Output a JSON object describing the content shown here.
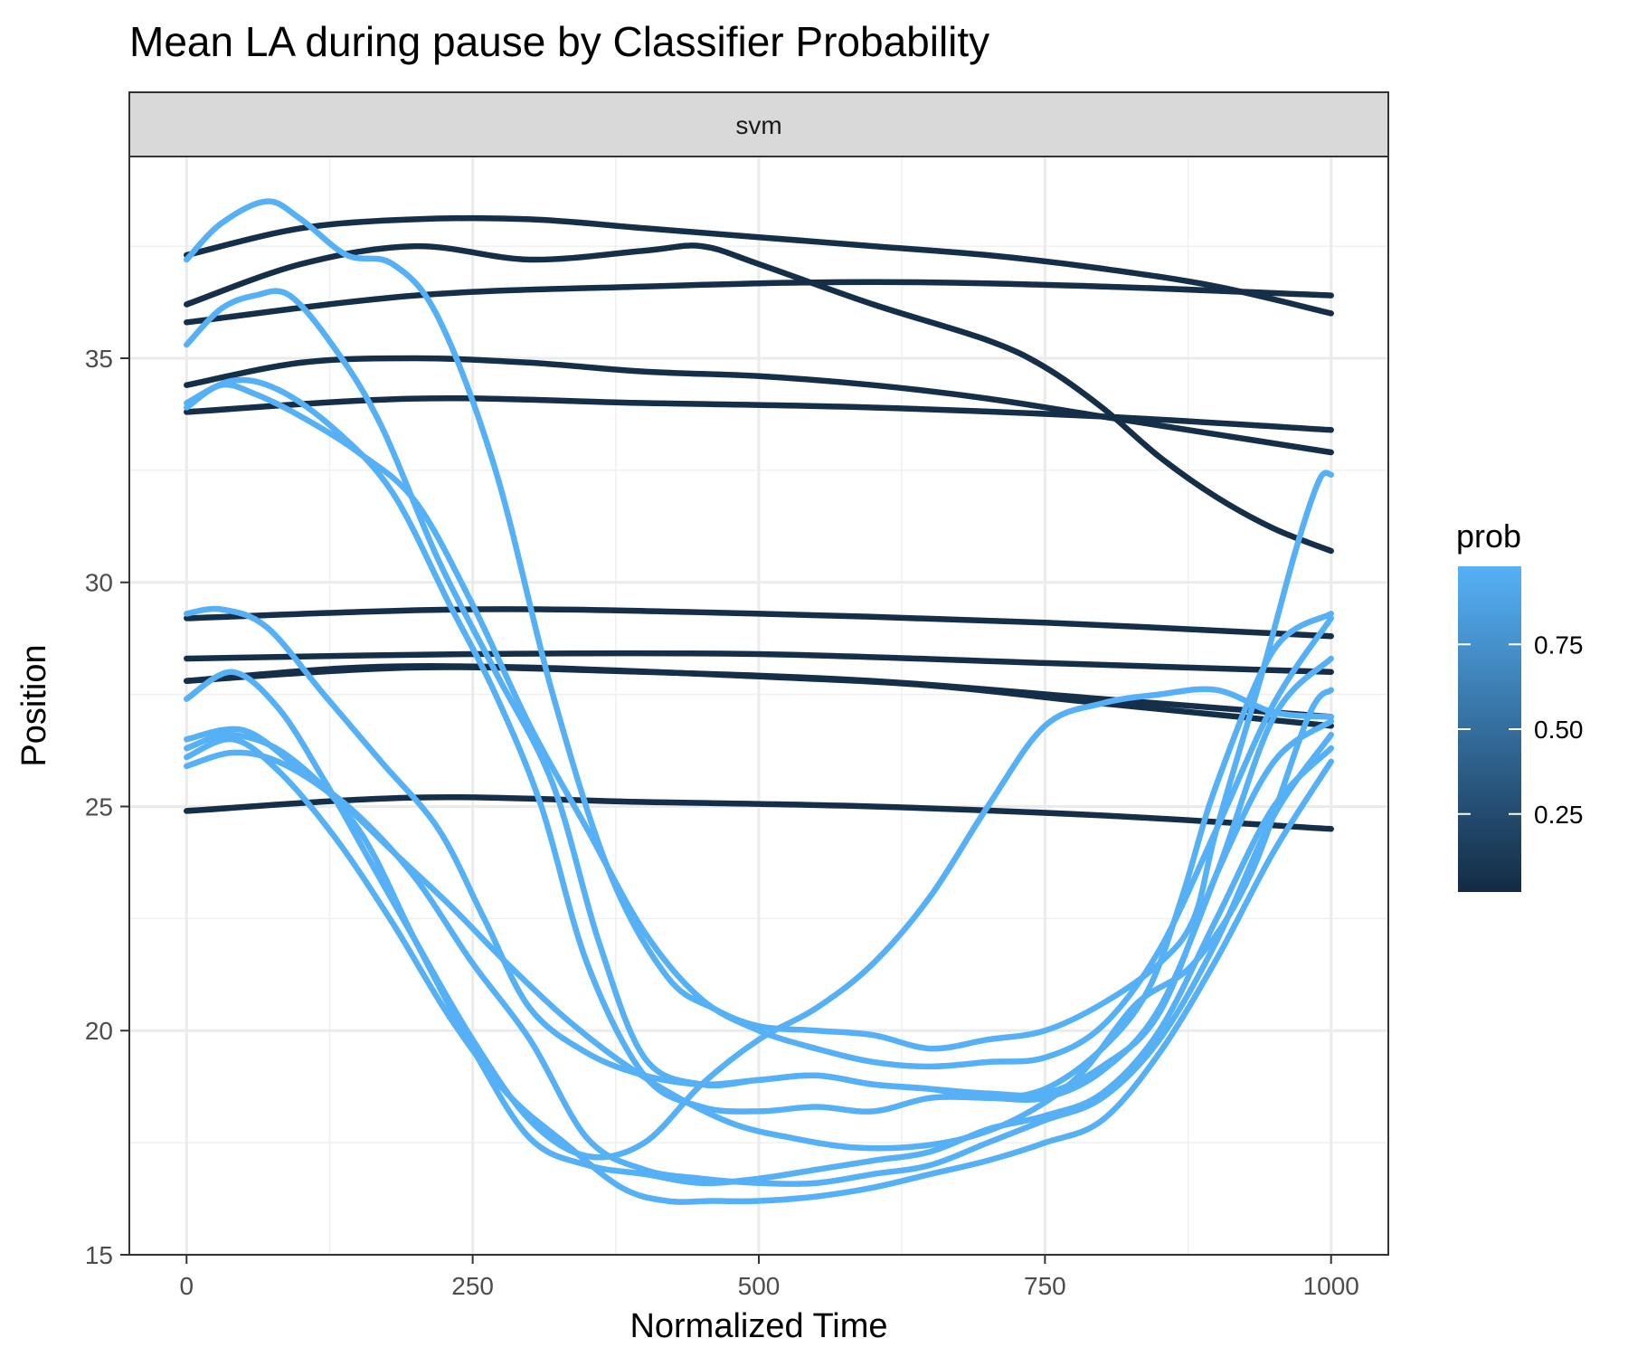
{
  "chart_data": {
    "type": "line",
    "title": "Mean LA during pause by Classifier Probability",
    "facet_label": "svm",
    "xlabel": "Normalized Time",
    "ylabel": "Position",
    "xlim": [
      -50,
      1050
    ],
    "ylim": [
      15,
      39.5
    ],
    "x_ticks": [
      0,
      250,
      500,
      750,
      1000
    ],
    "y_ticks": [
      15,
      20,
      25,
      30,
      35
    ],
    "grid": true,
    "legend": {
      "title": "prob",
      "placement": "right",
      "ticks": [
        0.25,
        0.5,
        0.75
      ],
      "tick_labels": [
        "0.25",
        "0.50",
        "0.75"
      ],
      "range": [
        0.02,
        0.98
      ],
      "color_low": "#132B43",
      "color_high": "#56B1F7"
    },
    "series": [
      {
        "prob": 0.05,
        "points": [
          [
            0,
            37.3
          ],
          [
            100,
            37.9
          ],
          [
            200,
            38.1
          ],
          [
            300,
            38.1
          ],
          [
            400,
            37.9
          ],
          [
            500,
            37.7
          ],
          [
            600,
            37.5
          ],
          [
            700,
            37.3
          ],
          [
            800,
            37.0
          ],
          [
            900,
            36.6
          ],
          [
            1000,
            36.0
          ]
        ]
      },
      {
        "prob": 0.05,
        "points": [
          [
            0,
            36.2
          ],
          [
            100,
            37.1
          ],
          [
            200,
            37.5
          ],
          [
            300,
            37.2
          ],
          [
            400,
            37.4
          ],
          [
            450,
            37.5
          ],
          [
            500,
            37.1
          ],
          [
            600,
            36.2
          ],
          [
            700,
            35.4
          ],
          [
            750,
            34.8
          ],
          [
            800,
            33.9
          ],
          [
            850,
            32.8
          ],
          [
            900,
            31.9
          ],
          [
            950,
            31.2
          ],
          [
            1000,
            30.7
          ]
        ]
      },
      {
        "prob": 0.05,
        "points": [
          [
            0,
            35.8
          ],
          [
            200,
            36.4
          ],
          [
            400,
            36.6
          ],
          [
            600,
            36.7
          ],
          [
            800,
            36.6
          ],
          [
            1000,
            36.4
          ]
        ]
      },
      {
        "prob": 0.05,
        "points": [
          [
            0,
            34.4
          ],
          [
            100,
            34.9
          ],
          [
            200,
            35.0
          ],
          [
            300,
            34.9
          ],
          [
            400,
            34.7
          ],
          [
            500,
            34.6
          ],
          [
            600,
            34.4
          ],
          [
            700,
            34.1
          ],
          [
            800,
            33.7
          ],
          [
            900,
            33.3
          ],
          [
            1000,
            32.9
          ]
        ]
      },
      {
        "prob": 0.05,
        "points": [
          [
            0,
            33.8
          ],
          [
            200,
            34.1
          ],
          [
            400,
            34.0
          ],
          [
            600,
            33.9
          ],
          [
            800,
            33.7
          ],
          [
            1000,
            33.4
          ]
        ]
      },
      {
        "prob": 0.05,
        "points": [
          [
            0,
            29.2
          ],
          [
            250,
            29.4
          ],
          [
            500,
            29.3
          ],
          [
            750,
            29.1
          ],
          [
            1000,
            28.8
          ]
        ]
      },
      {
        "prob": 0.05,
        "points": [
          [
            0,
            28.3
          ],
          [
            250,
            28.4
          ],
          [
            500,
            28.4
          ],
          [
            750,
            28.2
          ],
          [
            1000,
            28.0
          ]
        ]
      },
      {
        "prob": 0.05,
        "points": [
          [
            0,
            27.8
          ],
          [
            200,
            28.1
          ],
          [
            400,
            28.0
          ],
          [
            600,
            27.8
          ],
          [
            800,
            27.4
          ],
          [
            1000,
            27.0
          ]
        ]
      },
      {
        "prob": 0.05,
        "points": [
          [
            0,
            27.8
          ],
          [
            150,
            28.1
          ],
          [
            300,
            28.1
          ],
          [
            500,
            27.9
          ],
          [
            650,
            27.7
          ],
          [
            800,
            27.3
          ],
          [
            1000,
            26.8
          ]
        ]
      },
      {
        "prob": 0.05,
        "points": [
          [
            0,
            24.9
          ],
          [
            200,
            25.2
          ],
          [
            400,
            25.1
          ],
          [
            600,
            25.0
          ],
          [
            800,
            24.8
          ],
          [
            1000,
            24.5
          ]
        ]
      },
      {
        "prob": 0.97,
        "points": [
          [
            0,
            37.2
          ],
          [
            30,
            38.0
          ],
          [
            70,
            38.5
          ],
          [
            100,
            38.1
          ],
          [
            140,
            37.3
          ],
          [
            180,
            37.1
          ],
          [
            220,
            35.9
          ],
          [
            270,
            32.5
          ],
          [
            320,
            27.5
          ],
          [
            370,
            23.5
          ],
          [
            420,
            21.2
          ],
          [
            460,
            20.5
          ],
          [
            500,
            20.1
          ],
          [
            550,
            20.0
          ],
          [
            600,
            19.9
          ],
          [
            650,
            19.6
          ],
          [
            700,
            19.8
          ],
          [
            750,
            20.0
          ],
          [
            800,
            20.6
          ],
          [
            850,
            21.5
          ],
          [
            880,
            22.5
          ],
          [
            900,
            24.5
          ],
          [
            940,
            28.0
          ],
          [
            970,
            30.8
          ],
          [
            990,
            32.3
          ],
          [
            1000,
            32.4
          ]
        ]
      },
      {
        "prob": 0.97,
        "points": [
          [
            0,
            35.3
          ],
          [
            30,
            36.1
          ],
          [
            60,
            36.4
          ],
          [
            90,
            36.4
          ],
          [
            130,
            35.2
          ],
          [
            170,
            33.5
          ],
          [
            220,
            30.5
          ],
          [
            270,
            28.0
          ],
          [
            320,
            25.5
          ],
          [
            360,
            22.0
          ],
          [
            400,
            19.4
          ],
          [
            450,
            18.8
          ],
          [
            500,
            18.9
          ],
          [
            550,
            19.0
          ],
          [
            600,
            18.8
          ],
          [
            650,
            18.7
          ],
          [
            700,
            18.5
          ],
          [
            750,
            18.7
          ],
          [
            800,
            19.6
          ],
          [
            840,
            20.9
          ],
          [
            870,
            23.0
          ],
          [
            900,
            25.5
          ],
          [
            950,
            28.5
          ],
          [
            1000,
            29.3
          ]
        ]
      },
      {
        "prob": 0.97,
        "points": [
          [
            0,
            34.0
          ],
          [
            40,
            34.5
          ],
          [
            80,
            34.3
          ],
          [
            130,
            33.4
          ],
          [
            180,
            32.0
          ],
          [
            230,
            29.5
          ],
          [
            270,
            27.5
          ],
          [
            310,
            25.0
          ],
          [
            350,
            21.5
          ],
          [
            400,
            19.0
          ],
          [
            450,
            18.3
          ],
          [
            500,
            18.2
          ],
          [
            550,
            18.3
          ],
          [
            600,
            18.2
          ],
          [
            650,
            18.5
          ],
          [
            700,
            18.5
          ],
          [
            750,
            18.5
          ],
          [
            800,
            19.1
          ],
          [
            850,
            20.5
          ],
          [
            900,
            23.5
          ],
          [
            950,
            27.0
          ],
          [
            1000,
            28.3
          ]
        ]
      },
      {
        "prob": 0.97,
        "points": [
          [
            0,
            33.9
          ],
          [
            30,
            34.4
          ],
          [
            60,
            34.2
          ],
          [
            100,
            33.7
          ],
          [
            150,
            32.9
          ],
          [
            200,
            31.8
          ],
          [
            250,
            29.5
          ],
          [
            300,
            26.8
          ],
          [
            350,
            24.5
          ],
          [
            400,
            22.2
          ],
          [
            450,
            20.7
          ],
          [
            500,
            20.0
          ],
          [
            550,
            19.6
          ],
          [
            600,
            19.3
          ],
          [
            650,
            19.2
          ],
          [
            700,
            19.3
          ],
          [
            750,
            19.4
          ],
          [
            800,
            20.1
          ],
          [
            850,
            21.8
          ],
          [
            900,
            24.5
          ],
          [
            950,
            27.3
          ],
          [
            1000,
            29.2
          ]
        ]
      },
      {
        "prob": 0.97,
        "points": [
          [
            0,
            29.3
          ],
          [
            30,
            29.4
          ],
          [
            70,
            29.0
          ],
          [
            120,
            27.5
          ],
          [
            170,
            26.0
          ],
          [
            220,
            24.5
          ],
          [
            260,
            22.5
          ],
          [
            300,
            20.5
          ],
          [
            350,
            19.5
          ],
          [
            400,
            19.0
          ],
          [
            450,
            18.8
          ],
          [
            500,
            18.9
          ],
          [
            550,
            19.0
          ],
          [
            600,
            18.8
          ],
          [
            650,
            18.7
          ],
          [
            700,
            18.6
          ],
          [
            750,
            18.6
          ],
          [
            800,
            19.2
          ],
          [
            850,
            20.4
          ],
          [
            900,
            23.5
          ],
          [
            950,
            26.0
          ],
          [
            1000,
            26.9
          ]
        ]
      },
      {
        "prob": 0.97,
        "points": [
          [
            0,
            27.4
          ],
          [
            40,
            28.0
          ],
          [
            80,
            27.2
          ],
          [
            120,
            25.6
          ],
          [
            160,
            23.8
          ],
          [
            200,
            22.0
          ],
          [
            250,
            19.8
          ],
          [
            300,
            18.0
          ],
          [
            350,
            17.2
          ],
          [
            400,
            17.5
          ],
          [
            450,
            18.8
          ],
          [
            500,
            19.8
          ],
          [
            550,
            20.5
          ],
          [
            600,
            21.5
          ],
          [
            650,
            23.0
          ],
          [
            700,
            25.0
          ],
          [
            750,
            26.8
          ],
          [
            800,
            27.3
          ],
          [
            850,
            27.5
          ],
          [
            900,
            27.6
          ],
          [
            950,
            27.1
          ],
          [
            1000,
            27.0
          ]
        ]
      },
      {
        "prob": 0.97,
        "points": [
          [
            0,
            26.5
          ],
          [
            50,
            26.7
          ],
          [
            100,
            25.8
          ],
          [
            150,
            24.8
          ],
          [
            200,
            23.4
          ],
          [
            250,
            21.5
          ],
          [
            300,
            19.8
          ],
          [
            350,
            17.6
          ],
          [
            400,
            16.9
          ],
          [
            450,
            16.7
          ],
          [
            500,
            16.6
          ],
          [
            550,
            16.6
          ],
          [
            600,
            16.8
          ],
          [
            650,
            17.0
          ],
          [
            700,
            17.5
          ],
          [
            750,
            18.0
          ],
          [
            800,
            18.5
          ],
          [
            850,
            19.8
          ],
          [
            900,
            22.0
          ],
          [
            950,
            24.8
          ],
          [
            1000,
            26.6
          ]
        ]
      },
      {
        "prob": 0.97,
        "points": [
          [
            0,
            26.3
          ],
          [
            40,
            26.6
          ],
          [
            90,
            26.1
          ],
          [
            150,
            24.5
          ],
          [
            200,
            22.0
          ],
          [
            250,
            19.6
          ],
          [
            300,
            17.6
          ],
          [
            350,
            17.0
          ],
          [
            400,
            16.8
          ],
          [
            450,
            16.6
          ],
          [
            500,
            16.7
          ],
          [
            550,
            16.9
          ],
          [
            600,
            17.1
          ],
          [
            650,
            17.3
          ],
          [
            700,
            17.8
          ],
          [
            750,
            18.1
          ],
          [
            800,
            18.6
          ],
          [
            850,
            20.0
          ],
          [
            900,
            22.5
          ],
          [
            950,
            25.0
          ],
          [
            1000,
            26.3
          ]
        ]
      },
      {
        "prob": 0.97,
        "points": [
          [
            0,
            26.1
          ],
          [
            40,
            26.5
          ],
          [
            80,
            25.8
          ],
          [
            130,
            24.3
          ],
          [
            180,
            22.4
          ],
          [
            230,
            20.3
          ],
          [
            280,
            18.6
          ],
          [
            330,
            17.5
          ],
          [
            380,
            16.5
          ],
          [
            420,
            16.2
          ],
          [
            460,
            16.2
          ],
          [
            500,
            16.2
          ],
          [
            550,
            16.3
          ],
          [
            600,
            16.5
          ],
          [
            650,
            16.8
          ],
          [
            700,
            17.1
          ],
          [
            750,
            17.5
          ],
          [
            800,
            18.0
          ],
          [
            850,
            19.5
          ],
          [
            900,
            21.6
          ],
          [
            950,
            24.0
          ],
          [
            1000,
            26.0
          ]
        ]
      },
      {
        "prob": 0.97,
        "points": [
          [
            0,
            25.9
          ],
          [
            40,
            26.2
          ],
          [
            80,
            26.0
          ],
          [
            130,
            25.2
          ],
          [
            180,
            24.0
          ],
          [
            230,
            22.8
          ],
          [
            280,
            21.5
          ],
          [
            330,
            20.3
          ],
          [
            380,
            19.3
          ],
          [
            430,
            18.5
          ],
          [
            480,
            17.9
          ],
          [
            530,
            17.6
          ],
          [
            580,
            17.4
          ],
          [
            630,
            17.4
          ],
          [
            680,
            17.6
          ],
          [
            730,
            18.1
          ],
          [
            780,
            19.0
          ],
          [
            830,
            20.6
          ],
          [
            880,
            21.5
          ],
          [
            930,
            23.5
          ],
          [
            980,
            27.0
          ],
          [
            1000,
            27.6
          ]
        ]
      }
    ]
  }
}
